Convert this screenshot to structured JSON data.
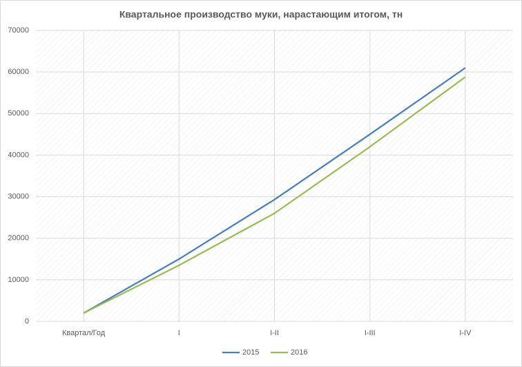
{
  "chart_data": {
    "type": "line",
    "title": "Квартальное производство муки, нарастающим итогом, тн",
    "categories": [
      "Квартал/Год",
      "I",
      "I-II",
      "I-III",
      "I-IV"
    ],
    "series": [
      {
        "name": "2015",
        "color": "#4a7ebb",
        "values": [
          2000,
          15000,
          29300,
          45000,
          61000
        ]
      },
      {
        "name": "2016",
        "color": "#9bbb59",
        "values": [
          2000,
          13500,
          26000,
          42000,
          58800
        ]
      }
    ],
    "ylim": [
      0,
      70000
    ],
    "yticks": [
      0,
      10000,
      20000,
      30000,
      40000,
      50000,
      60000,
      70000
    ],
    "grid": true,
    "legend": "bottom"
  }
}
